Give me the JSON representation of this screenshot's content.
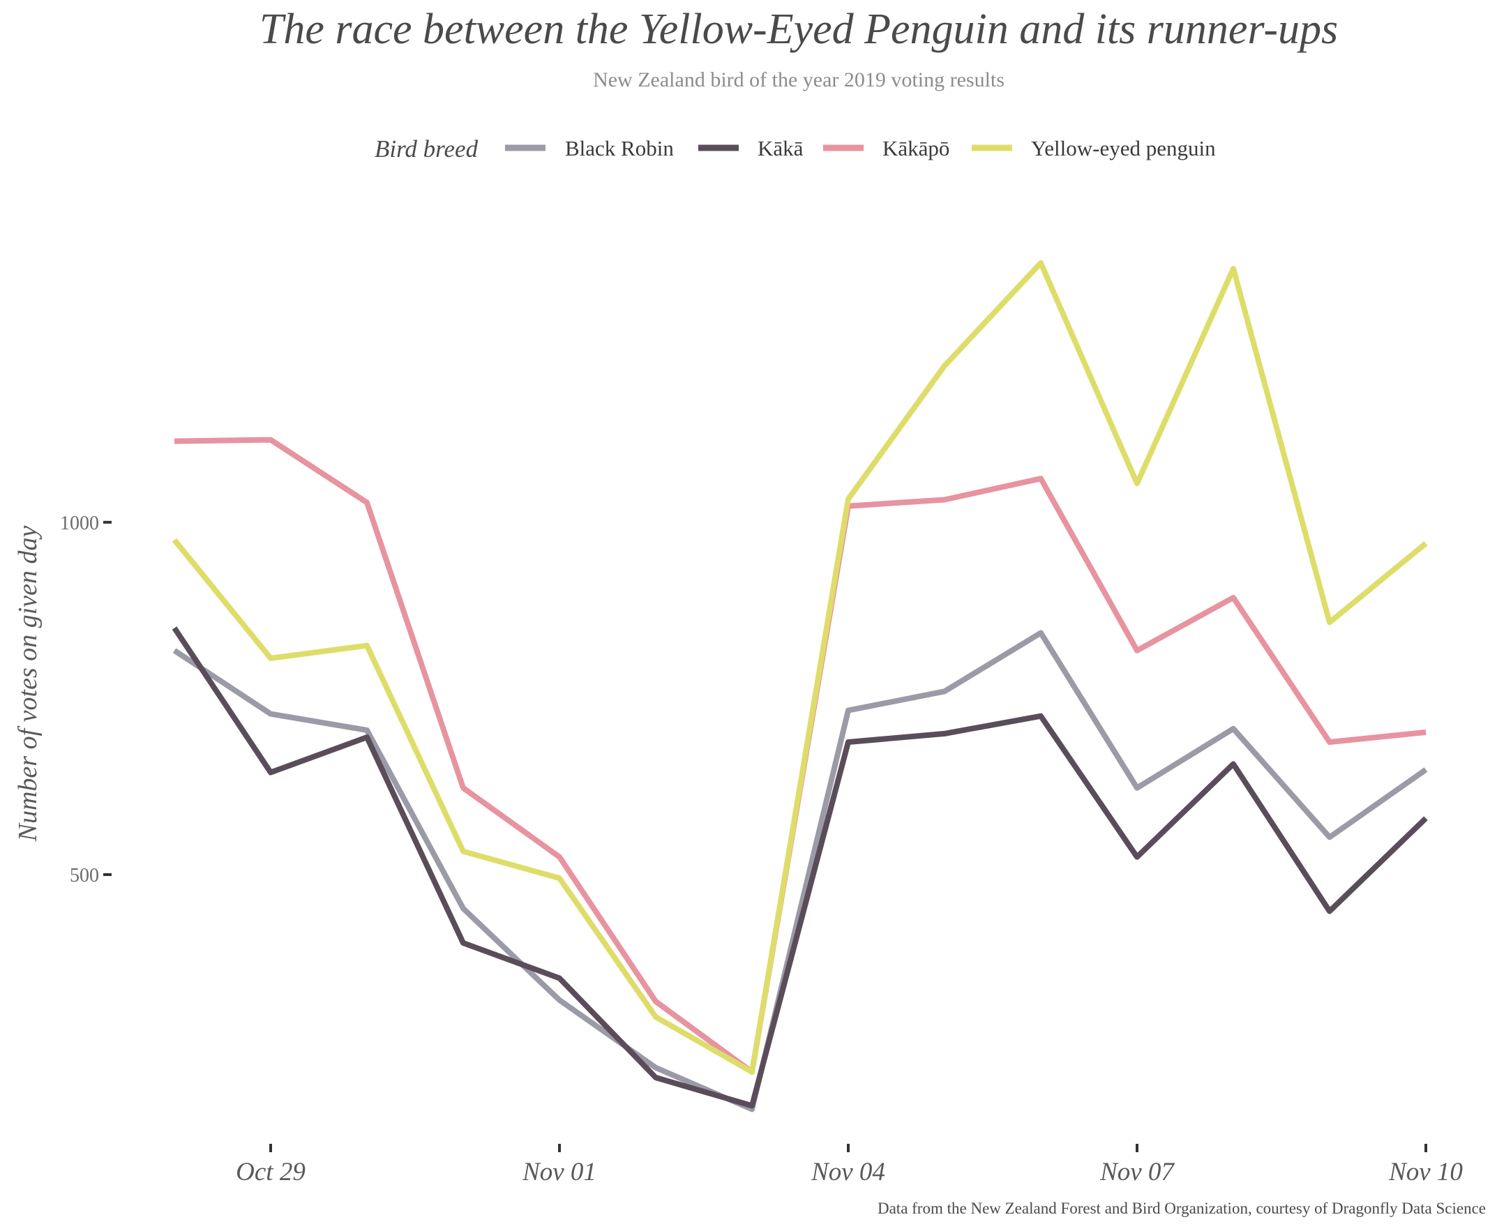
{
  "chart_data": {
    "type": "line",
    "title": "The race between the Yellow-Eyed Penguin and its runner-ups",
    "subtitle": "New Zealand bird of the year 2019 voting results",
    "legend_title": "Bird breed",
    "legend_position": "top",
    "xlabel": "",
    "ylabel": "Number of votes on given day",
    "caption": "Data from the New Zealand Forest and Bird Organization, courtesy of Dragonfly Data Science",
    "grid": false,
    "ylim": [
      165,
      1410
    ],
    "yticks": [
      500,
      1000
    ],
    "ytick_labels": [
      "500",
      "1000"
    ],
    "xticks": [
      "Nov 01",
      "Nov 04",
      "Nov 07",
      "Nov 10",
      "Oct 29"
    ],
    "x": [
      "Oct 28",
      "Oct 29",
      "Oct 30",
      "Oct 31",
      "Nov 01",
      "Nov 02",
      "Nov 03",
      "Nov 04",
      "Nov 05",
      "Nov 06",
      "Nov 07",
      "Nov 08",
      "Nov 09",
      "Nov 10"
    ],
    "series": [
      {
        "name": "Black Robin",
        "color": "#9b9ba7",
        "values": [
          818,
          728,
          705,
          452,
          322,
          226,
          167,
          733,
          760,
          843,
          623,
          707,
          553,
          649
        ]
      },
      {
        "name": "Kākā",
        "color": "#5a4d5a",
        "values": [
          850,
          645,
          695,
          403,
          353,
          212,
          172,
          688,
          700,
          725,
          525,
          657,
          448,
          580
        ]
      },
      {
        "name": "Kākāpō",
        "color": "#e793a0",
        "values": [
          1115,
          1117,
          1028,
          623,
          525,
          320,
          220,
          1023,
          1032,
          1062,
          818,
          893,
          688,
          702
        ]
      },
      {
        "name": "Yellow-eyed penguin",
        "color": "#dedd6a",
        "values": [
          975,
          807,
          825,
          533,
          495,
          298,
          220,
          1033,
          1222,
          1368,
          1055,
          1360,
          858,
          970
        ]
      }
    ]
  }
}
